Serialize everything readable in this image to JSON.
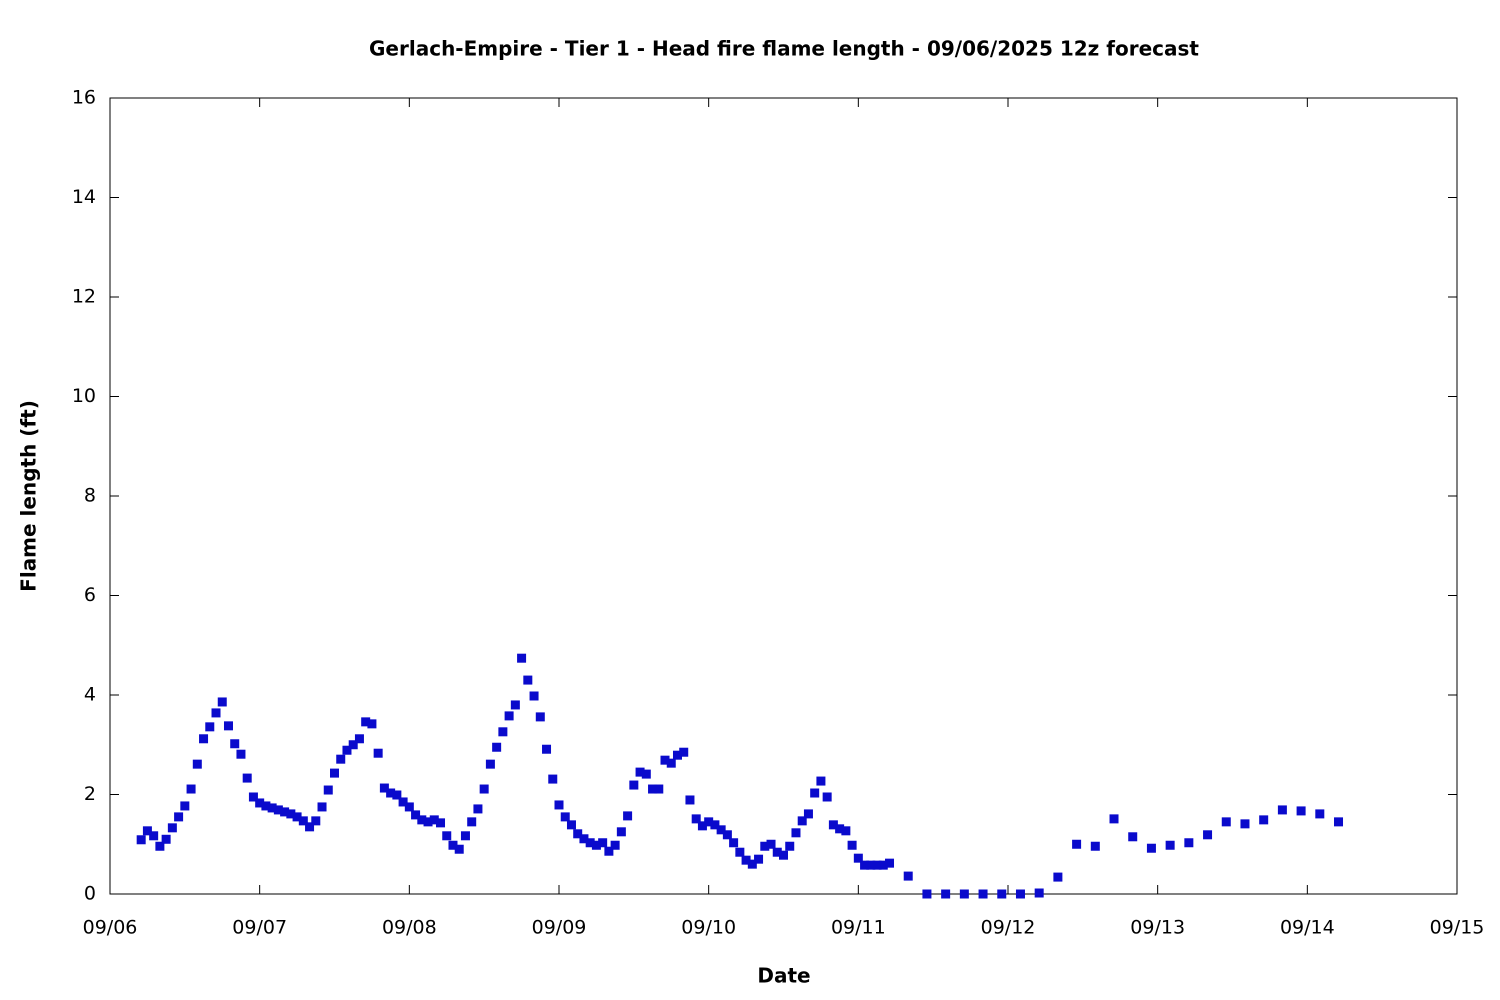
{
  "chart_data": {
    "type": "scatter",
    "title": "Gerlach-Empire - Tier 1 - Head fire flame length - 09/06/2025 12z forecast",
    "x_label": "Date",
    "y_label": "Flame length (ft)",
    "color": "#0a0acc",
    "xlim": [
      0,
      216
    ],
    "xticks": [
      {
        "value": 0,
        "label": "09/06"
      },
      {
        "value": 24,
        "label": "09/07"
      },
      {
        "value": 48,
        "label": "09/08"
      },
      {
        "value": 72,
        "label": "09/09"
      },
      {
        "value": 96,
        "label": "09/10"
      },
      {
        "value": 120,
        "label": "09/11"
      },
      {
        "value": 144,
        "label": "09/12"
      },
      {
        "value": 168,
        "label": "09/13"
      },
      {
        "value": 192,
        "label": "09/14"
      },
      {
        "value": 216,
        "label": "09/15"
      }
    ],
    "ylim": [
      0,
      16
    ],
    "yticks": [
      0,
      2,
      4,
      6,
      8,
      10,
      12,
      14,
      16
    ],
    "x": [
      5,
      6,
      7,
      8,
      9,
      10,
      11,
      12,
      13,
      14,
      15,
      16,
      17,
      18,
      19,
      20,
      21,
      22,
      23,
      24,
      25,
      26,
      27,
      28,
      29,
      30,
      31,
      32,
      33,
      34,
      35,
      36,
      37,
      38,
      39,
      40,
      41,
      42,
      43,
      44,
      45,
      46,
      47,
      48,
      49,
      50,
      51,
      52,
      53,
      54,
      55,
      56,
      57,
      58,
      59,
      60,
      61,
      62,
      63,
      64,
      65,
      66,
      67,
      68,
      69,
      70,
      71,
      72,
      73,
      74,
      75,
      76,
      77,
      78,
      79,
      80,
      81,
      82,
      83,
      84,
      85,
      86,
      87,
      88,
      89,
      90,
      91,
      92,
      93,
      94,
      95,
      96,
      97,
      98,
      99,
      100,
      101,
      102,
      103,
      104,
      105,
      106,
      107,
      108,
      109,
      110,
      111,
      112,
      113,
      114,
      115,
      116,
      117,
      118,
      119,
      120,
      121,
      122,
      123,
      124,
      125,
      128,
      131,
      134,
      137,
      140,
      143,
      146,
      149,
      152,
      155,
      158,
      161,
      164,
      167,
      170,
      173,
      176,
      179,
      182,
      185,
      188,
      191,
      194,
      197
    ],
    "values": [
      1.09,
      1.27,
      1.17,
      0.96,
      1.1,
      1.33,
      1.55,
      1.77,
      2.11,
      2.61,
      3.12,
      3.36,
      3.64,
      3.86,
      3.38,
      3.02,
      2.81,
      2.33,
      1.95,
      1.83,
      1.77,
      1.73,
      1.69,
      1.65,
      1.61,
      1.55,
      1.47,
      1.35,
      1.47,
      1.75,
      2.09,
      2.43,
      2.71,
      2.89,
      3.0,
      3.12,
      3.46,
      3.42,
      2.83,
      2.13,
      2.03,
      1.99,
      1.85,
      1.75,
      1.59,
      1.49,
      1.45,
      1.49,
      1.43,
      1.17,
      0.98,
      0.9,
      1.17,
      1.45,
      1.71,
      2.11,
      2.61,
      2.95,
      3.26,
      3.58,
      3.8,
      4.74,
      4.3,
      3.98,
      3.56,
      2.91,
      2.31,
      1.79,
      1.55,
      1.39,
      1.21,
      1.11,
      1.03,
      0.98,
      1.03,
      0.86,
      0.98,
      1.25,
      1.57,
      2.19,
      2.45,
      2.41,
      2.11,
      2.11,
      2.69,
      2.63,
      2.79,
      2.85,
      1.89,
      1.51,
      1.37,
      1.45,
      1.39,
      1.29,
      1.19,
      1.03,
      0.84,
      0.68,
      0.6,
      0.7,
      0.96,
      1.0,
      0.84,
      0.78,
      0.96,
      1.23,
      1.47,
      1.61,
      2.03,
      2.27,
      1.95,
      1.39,
      1.31,
      1.27,
      0.98,
      0.72,
      0.58,
      0.58,
      0.58,
      0.58,
      0.62,
      0.36,
      0,
      0,
      0,
      0,
      0,
      0,
      0.02,
      0.34,
      1.0,
      0.96,
      1.51,
      1.15,
      0.92,
      0.98,
      1.03,
      1.19,
      1.45,
      1.41,
      1.49,
      1.69,
      1.67,
      1.61,
      1.45
    ]
  }
}
